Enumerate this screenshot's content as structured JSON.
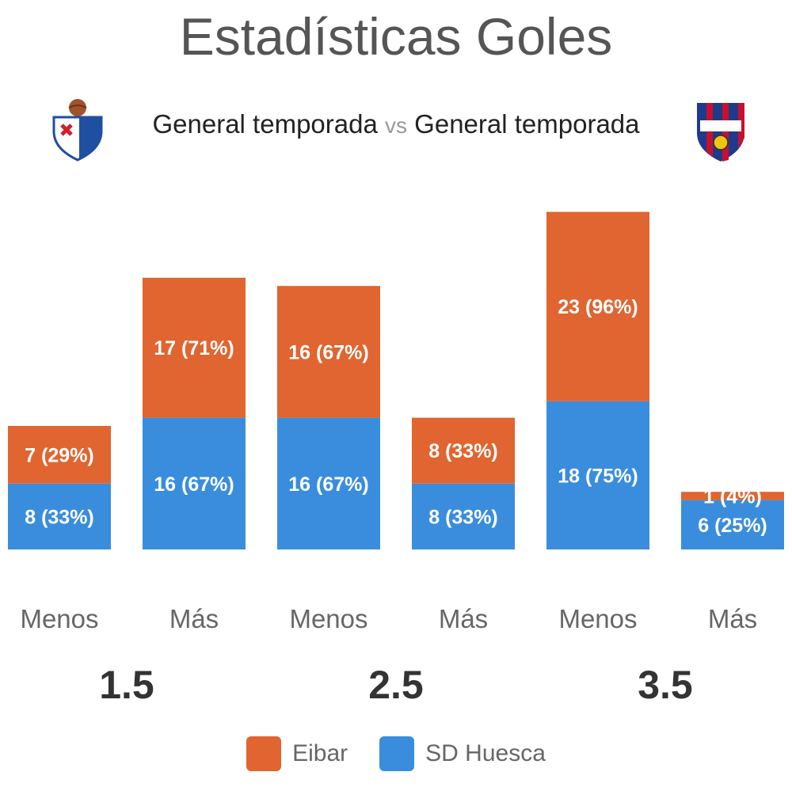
{
  "title": "Estadísticas Goles",
  "subtitle": {
    "left": "General temporada",
    "vs": "vs",
    "right": "General temporada"
  },
  "teams": {
    "home": "Eibar",
    "away": "SD Huesca"
  },
  "colors": {
    "home": "#e06530",
    "away": "#3a8ddd",
    "title": "#555555"
  },
  "icons": {
    "home_crest": "eibar-crest-icon",
    "away_crest": "huesca-crest-icon"
  },
  "chart_data": {
    "type": "bar",
    "title": "Estadísticas Goles",
    "categories": [
      "Menos",
      "Más",
      "Menos",
      "Más",
      "Menos",
      "Más"
    ],
    "groups": [
      "1.5",
      "2.5",
      "3.5"
    ],
    "series": [
      {
        "name": "Eibar",
        "values": [
          7,
          17,
          16,
          8,
          23,
          1
        ],
        "labels": [
          "7 (29%)",
          "17 (71%)",
          "16 (67%)",
          "8 (33%)",
          "23 (96%)",
          "1 (4%)"
        ]
      },
      {
        "name": "SD Huesca",
        "values": [
          8,
          16,
          16,
          8,
          18,
          6
        ],
        "labels": [
          "8 (33%)",
          "16 (67%)",
          "16 (67%)",
          "8 (33%)",
          "18 (75%)",
          "6 (25%)"
        ]
      }
    ],
    "grid": false,
    "legend": "bottom"
  }
}
